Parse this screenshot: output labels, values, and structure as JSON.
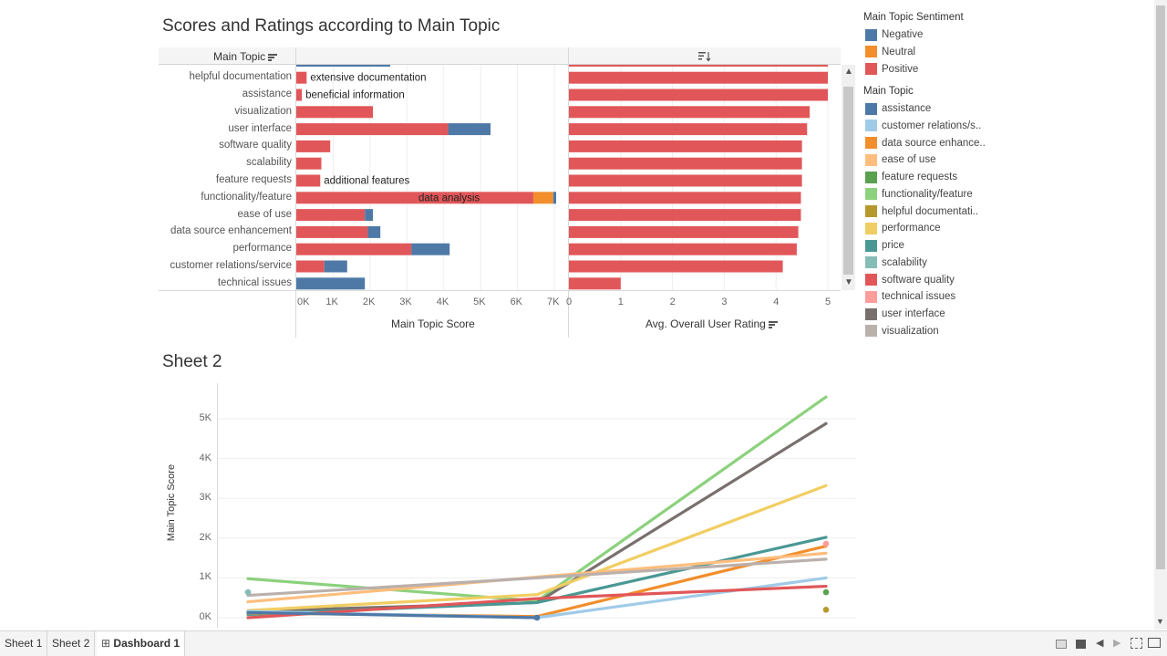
{
  "dashboard": {
    "sheet1_title": "Scores and Ratings according to Main Topic",
    "sheet2_title": "Sheet 2",
    "header_main_topic": "Main Topic",
    "score_axis_title": "Main Topic Score",
    "rating_axis_title": "Avg. Overall User Rating",
    "sheet2_ylabel": "Main Topic Score"
  },
  "legend_sentiment": {
    "title": "Main Topic Sentiment",
    "items": [
      {
        "label": "Negative",
        "color": "#4e79a7"
      },
      {
        "label": "Neutral",
        "color": "#f28e2b"
      },
      {
        "label": "Positive",
        "color": "#e15759"
      }
    ]
  },
  "legend_topic": {
    "title": "Main Topic",
    "items": [
      {
        "label": "assistance",
        "color": "#4e79a7"
      },
      {
        "label": "customer relations/s..",
        "color": "#a0cbe8"
      },
      {
        "label": "data source enhance..",
        "color": "#f28e2b"
      },
      {
        "label": "ease of use",
        "color": "#ffbe7d"
      },
      {
        "label": "feature requests",
        "color": "#59a14f"
      },
      {
        "label": "functionality/feature",
        "color": "#8cd17d"
      },
      {
        "label": "helpful documentati..",
        "color": "#b6992d"
      },
      {
        "label": "performance",
        "color": "#f1ce63"
      },
      {
        "label": "price",
        "color": "#499894"
      },
      {
        "label": "scalability",
        "color": "#86bcb6"
      },
      {
        "label": "software quality",
        "color": "#e15759"
      },
      {
        "label": "technical issues",
        "color": "#ff9d9a"
      },
      {
        "label": "user interface",
        "color": "#79706e"
      },
      {
        "label": "visualization",
        "color": "#bab0ac"
      }
    ]
  },
  "chart_data": [
    {
      "type": "bar",
      "stacked": true,
      "categories": [
        "helpful documentation",
        "assistance",
        "visualization",
        "user interface",
        "software quality",
        "scalability",
        "feature requests",
        "functionality/feature",
        "ease of use",
        "data source enhancement",
        "performance",
        "customer relations/service",
        "technical issues"
      ],
      "series": [
        {
          "name": "Positive",
          "color": "#e15759",
          "values": [
            280,
            150,
            2080,
            4120,
            920,
            680,
            650,
            6430,
            1860,
            1940,
            3120,
            760,
            0
          ]
        },
        {
          "name": "Neutral",
          "color": "#f28e2b",
          "values": [
            0,
            0,
            0,
            0,
            0,
            0,
            0,
            540,
            0,
            0,
            0,
            0,
            0
          ]
        },
        {
          "name": "Negative",
          "color": "#4e79a7",
          "values": [
            0,
            0,
            0,
            1150,
            0,
            0,
            0,
            80,
            220,
            340,
            1040,
            620,
            1860
          ]
        }
      ],
      "annotations": [
        {
          "category": "helpful documentation",
          "text": "extensive documentation"
        },
        {
          "category": "assistance",
          "text": "beneficial information"
        },
        {
          "category": "feature requests",
          "text": "additional features"
        },
        {
          "category": "functionality/feature",
          "text": "data analysis"
        }
      ],
      "x_ticks": [
        "0K",
        "1K",
        "2K",
        "3K",
        "4K",
        "5K",
        "6K",
        "7K"
      ],
      "xlim": [
        0,
        7000
      ],
      "xlabel": "Main Topic Score"
    },
    {
      "type": "bar",
      "categories": [
        "helpful documentation",
        "assistance",
        "visualization",
        "user interface",
        "software quality",
        "scalability",
        "feature requests",
        "functionality/feature",
        "ease of use",
        "data source enhancement",
        "performance",
        "customer relations/service",
        "technical issues"
      ],
      "values": [
        5.0,
        5.0,
        4.65,
        4.6,
        4.5,
        4.5,
        4.5,
        4.48,
        4.48,
        4.43,
        4.4,
        4.13,
        1.0
      ],
      "color": "#e15759",
      "x_ticks": [
        "0",
        "1",
        "2",
        "3",
        "4",
        "5"
      ],
      "xlim": [
        0,
        5
      ],
      "xlabel": "Avg. Overall User Rating"
    },
    {
      "type": "line",
      "title": "Sheet 2",
      "ylabel": "Main Topic Score",
      "y_ticks": [
        "0K",
        "1K",
        "2K",
        "3K",
        "4K",
        "5K"
      ],
      "ylim": [
        0,
        5500
      ],
      "x": [
        0,
        1,
        2
      ],
      "series": [
        {
          "name": "functionality/feature",
          "color": "#8cd17d",
          "values": [
            980,
            420,
            5550
          ]
        },
        {
          "name": "user interface",
          "color": "#79706e",
          "values": [
            160,
            380,
            4880
          ]
        },
        {
          "name": "performance",
          "color": "#f1ce63",
          "values": [
            180,
            580,
            3320
          ]
        },
        {
          "name": "price",
          "color": "#499894",
          "values": [
            80,
            380,
            2020
          ]
        },
        {
          "name": "data source enhancement",
          "color": "#f28e2b",
          "values": [
            120,
            30,
            1800
          ]
        },
        {
          "name": "ease of use",
          "color": "#ffbe7d",
          "values": [
            400,
            1020,
            1620
          ]
        },
        {
          "name": "visualization",
          "color": "#bab0ac",
          "values": [
            560,
            1000,
            1470
          ]
        },
        {
          "name": "customer relations/service",
          "color": "#a0cbe8",
          "values": [
            160,
            0,
            1000
          ]
        },
        {
          "name": "software quality",
          "color": "#e15759",
          "values": [
            0,
            480,
            790
          ]
        },
        {
          "name": "assistance",
          "color": "#4e79a7",
          "values": [
            130,
            0,
            null
          ]
        }
      ],
      "points": [
        {
          "name": "scalability",
          "color": "#86bcb6",
          "x": 0,
          "y": 640
        },
        {
          "name": "technical issues",
          "color": "#ff9d9a",
          "x": 2,
          "y": 1860
        },
        {
          "name": "feature requests",
          "color": "#59a14f",
          "x": 2,
          "y": 640
        },
        {
          "name": "helpful documentation",
          "color": "#b6992d",
          "x": 2,
          "y": 200
        },
        {
          "name": "assistance",
          "color": "#4e79a7",
          "x": 1,
          "y": 0
        }
      ]
    }
  ],
  "tabs": [
    {
      "label": "Sheet 1"
    },
    {
      "label": "Sheet 2"
    },
    {
      "label": "Dashboard 1"
    }
  ]
}
